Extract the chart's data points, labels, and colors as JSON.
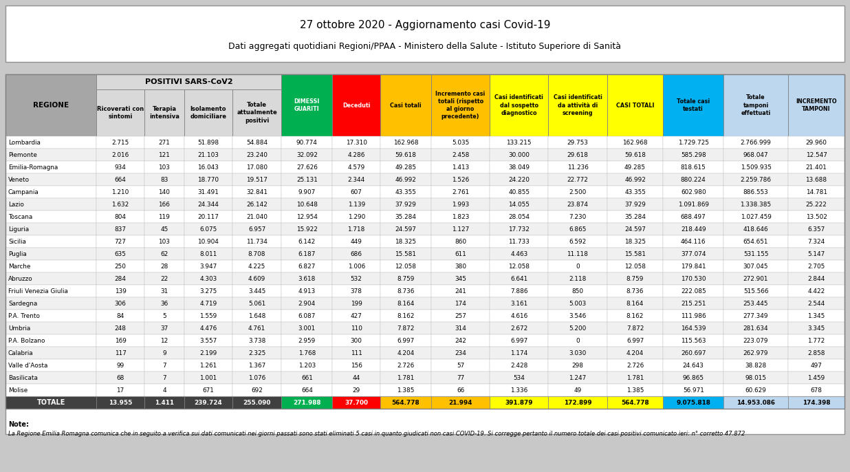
{
  "title1": "27 ottobre 2020 - Aggiornamento casi Covid-19",
  "title2": "Dati aggregati quotidiani Regioni/PPAA - Ministero della Salute - Istituto Superiore di Sanità",
  "note": "Note:",
  "note_text": "La Regione Emilia Romagna comunica che in seguito a verifica sui dati comunicati nei giorni passati sono stati eliminati 5 casi in quanto giudicati non casi COVID-19. Si corregge pertanto il numero totale dei casi positivi comunicato ieri: n° corretto 47.872",
  "headers_sub": [
    "Ricoverati con\nsintomi",
    "Terapia\nintensiva",
    "Isolamento\ndomiciliare",
    "Totale\nattualmente\npositivi"
  ],
  "col_labels_rest": [
    "DIMESSI\nGUARITI",
    "Deceduti",
    "Casi totali",
    "Incremento casi\ntotali (rispetto\nal giorno\nprecedente)",
    "Casi identificati\ndal sospetto\ndiagnostico",
    "Casi identificati\nda attività di\nscreening",
    "CASI TOTALI",
    "Totale casi\ntestati",
    "Totale\ntamponi\neffettuati",
    "INCREMENTO\nTAMPONI"
  ],
  "col_colors_rest": [
    "#00b050",
    "#ff0000",
    "#ffc000",
    "#ffc000",
    "#ffff00",
    "#ffff00",
    "#ffff00",
    "#00b0f0",
    "#bdd7ee",
    "#bdd7ee"
  ],
  "col_text_colors_rest": [
    "white",
    "white",
    "black",
    "black",
    "black",
    "black",
    "black",
    "black",
    "black",
    "black"
  ],
  "rows": [
    [
      "Lombardia",
      "2.715",
      "271",
      "51.898",
      "54.884",
      "90.774",
      "17.310",
      "162.968",
      "5.035",
      "133.215",
      "29.753",
      "162.968",
      "1.729.725",
      "2.766.999",
      "29.960"
    ],
    [
      "Piemonte",
      "2.016",
      "121",
      "21.103",
      "23.240",
      "32.092",
      "4.286",
      "59.618",
      "2.458",
      "30.000",
      "29.618",
      "59.618",
      "585.298",
      "968.047",
      "12.547"
    ],
    [
      "Emilia-Romagna",
      "934",
      "103",
      "16.043",
      "17.080",
      "27.626",
      "4.579",
      "49.285",
      "1.413",
      "38.049",
      "11.236",
      "49.285",
      "818.615",
      "1.509.935",
      "21.401"
    ],
    [
      "Veneto",
      "664",
      "83",
      "18.770",
      "19.517",
      "25.131",
      "2.344",
      "46.992",
      "1.526",
      "24.220",
      "22.772",
      "46.992",
      "880.224",
      "2.259.786",
      "13.688"
    ],
    [
      "Campania",
      "1.210",
      "140",
      "31.491",
      "32.841",
      "9.907",
      "607",
      "43.355",
      "2.761",
      "40.855",
      "2.500",
      "43.355",
      "602.980",
      "886.553",
      "14.781"
    ],
    [
      "Lazio",
      "1.632",
      "166",
      "24.344",
      "26.142",
      "10.648",
      "1.139",
      "37.929",
      "1.993",
      "14.055",
      "23.874",
      "37.929",
      "1.091.869",
      "1.338.385",
      "25.222"
    ],
    [
      "Toscana",
      "804",
      "119",
      "20.117",
      "21.040",
      "12.954",
      "1.290",
      "35.284",
      "1.823",
      "28.054",
      "7.230",
      "35.284",
      "688.497",
      "1.027.459",
      "13.502"
    ],
    [
      "Liguria",
      "837",
      "45",
      "6.075",
      "6.957",
      "15.922",
      "1.718",
      "24.597",
      "1.127",
      "17.732",
      "6.865",
      "24.597",
      "218.449",
      "418.646",
      "6.357"
    ],
    [
      "Sicilia",
      "727",
      "103",
      "10.904",
      "11.734",
      "6.142",
      "449",
      "18.325",
      "860",
      "11.733",
      "6.592",
      "18.325",
      "464.116",
      "654.651",
      "7.324"
    ],
    [
      "Puglia",
      "635",
      "62",
      "8.011",
      "8.708",
      "6.187",
      "686",
      "15.581",
      "611",
      "4.463",
      "11.118",
      "15.581",
      "377.074",
      "531.155",
      "5.147"
    ],
    [
      "Marche",
      "250",
      "28",
      "3.947",
      "4.225",
      "6.827",
      "1.006",
      "12.058",
      "380",
      "12.058",
      "0",
      "12.058",
      "179.841",
      "307.045",
      "2.705"
    ],
    [
      "Abruzzo",
      "284",
      "22",
      "4.303",
      "4.609",
      "3.618",
      "532",
      "8.759",
      "345",
      "6.641",
      "2.118",
      "8.759",
      "170.530",
      "272.901",
      "2.844"
    ],
    [
      "Friuli Venezia Giulia",
      "139",
      "31",
      "3.275",
      "3.445",
      "4.913",
      "378",
      "8.736",
      "241",
      "7.886",
      "850",
      "8.736",
      "222.085",
      "515.566",
      "4.422"
    ],
    [
      "Sardegna",
      "306",
      "36",
      "4.719",
      "5.061",
      "2.904",
      "199",
      "8.164",
      "174",
      "3.161",
      "5.003",
      "8.164",
      "215.251",
      "253.445",
      "2.544"
    ],
    [
      "P.A. Trento",
      "84",
      "5",
      "1.559",
      "1.648",
      "6.087",
      "427",
      "8.162",
      "257",
      "4.616",
      "3.546",
      "8.162",
      "111.986",
      "277.349",
      "1.345"
    ],
    [
      "Umbria",
      "248",
      "37",
      "4.476",
      "4.761",
      "3.001",
      "110",
      "7.872",
      "314",
      "2.672",
      "5.200",
      "7.872",
      "164.539",
      "281.634",
      "3.345"
    ],
    [
      "P.A. Bolzano",
      "169",
      "12",
      "3.557",
      "3.738",
      "2.959",
      "300",
      "6.997",
      "242",
      "6.997",
      "0",
      "6.997",
      "115.563",
      "223.079",
      "1.772"
    ],
    [
      "Calabria",
      "117",
      "9",
      "2.199",
      "2.325",
      "1.768",
      "111",
      "4.204",
      "234",
      "1.174",
      "3.030",
      "4.204",
      "260.697",
      "262.979",
      "2.858"
    ],
    [
      "Valle d'Aosta",
      "99",
      "7",
      "1.261",
      "1.367",
      "1.203",
      "156",
      "2.726",
      "57",
      "2.428",
      "298",
      "2.726",
      "24.643",
      "38.828",
      "497"
    ],
    [
      "Basilicata",
      "68",
      "7",
      "1.001",
      "1.076",
      "661",
      "44",
      "1.781",
      "77",
      "534",
      "1.247",
      "1.781",
      "96.865",
      "98.015",
      "1.459"
    ],
    [
      "Molise",
      "17",
      "4",
      "671",
      "692",
      "664",
      "29",
      "1.385",
      "66",
      "1.336",
      "49",
      "1.385",
      "56.971",
      "60.629",
      "678"
    ]
  ],
  "totale": [
    "TOTALE",
    "13.955",
    "1.411",
    "239.724",
    "255.090",
    "271.988",
    "37.700",
    "564.778",
    "21.994",
    "391.879",
    "172.899",
    "564.778",
    "9.075.818",
    "14.953.086",
    "174.398"
  ],
  "positivi_header_bg": "#d9d9d9",
  "regione_header_bg": "#a6a6a6",
  "totale_bg": "#404040",
  "outer_bg": "#c8c8c8",
  "table_bg": "#ffffff"
}
